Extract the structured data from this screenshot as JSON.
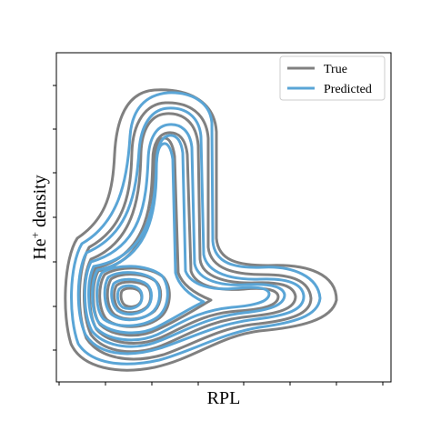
{
  "chart_data": {
    "type": "kde_contour",
    "xlabel": "RPL",
    "ylabel_main": "He",
    "ylabel_sup": "+",
    "ylabel_rest": " density",
    "tick_labels_shown": false,
    "grid": false,
    "legend_position": "top-right",
    "legend": [
      {
        "name": "True",
        "color": "#808080"
      },
      {
        "name": "Predicted",
        "color": "#5aa5d6"
      }
    ],
    "series": [
      {
        "name": "True",
        "color": "#808080",
        "levels": [
          1,
          2,
          3,
          4,
          5,
          6,
          7,
          8,
          9
        ]
      },
      {
        "name": "Predicted",
        "color": "#5aa5d6",
        "levels": [
          1,
          2,
          3,
          4,
          5,
          6,
          7,
          8,
          9
        ]
      }
    ]
  }
}
